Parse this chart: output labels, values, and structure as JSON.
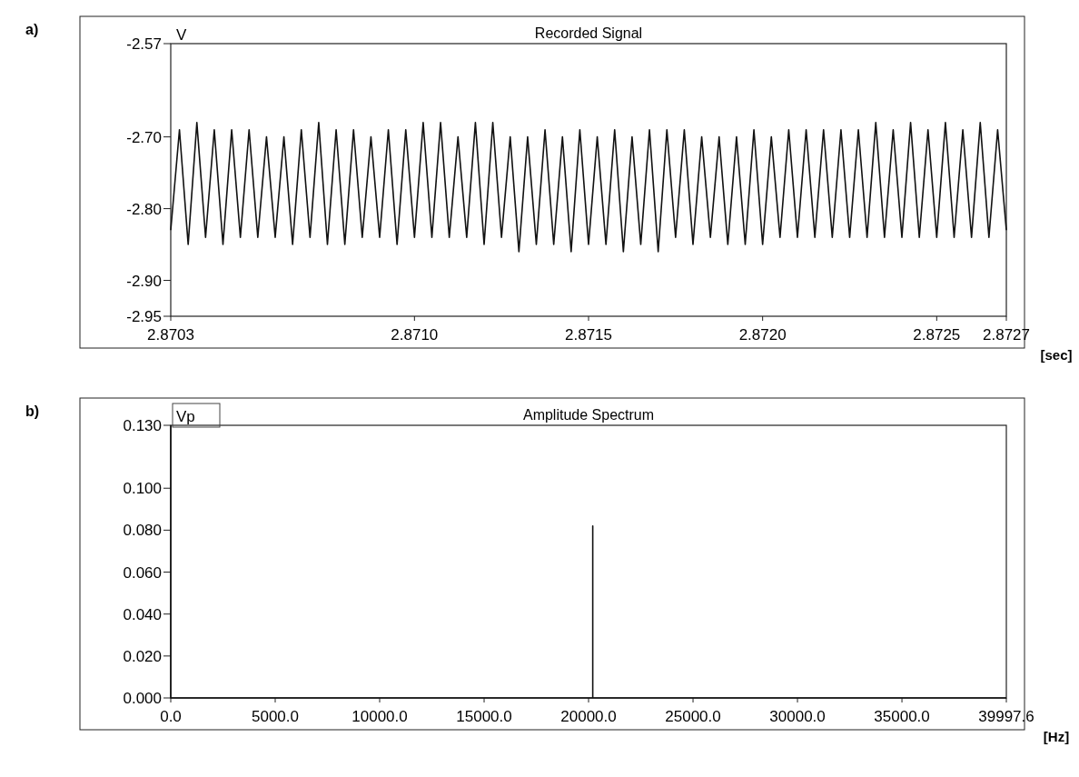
{
  "chart_data": [
    {
      "type": "line",
      "title": "Recorded Signal",
      "ylabel": "V",
      "xlabel": "[sec]",
      "annotations": [
        "a)"
      ],
      "xlim": [
        2.8703,
        2.8727
      ],
      "xticks": [
        {
          "value": 2.8703,
          "label": "2.8703"
        },
        {
          "value": 2.871,
          "label": "2.8710"
        },
        2.8715,
        {
          "value": 2.872,
          "label": "2.8720"
        },
        2.8725,
        2.8727
      ],
      "ylim": [
        -2.95,
        -2.57
      ],
      "yticks": [
        -2.57,
        {
          "value": -2.7,
          "label": "-2.70"
        },
        {
          "value": -2.8,
          "label": "-2.80"
        },
        {
          "value": -2.9,
          "label": "-2.90"
        },
        -2.95
      ],
      "grid": false,
      "marker": "none",
      "line_style": "solid",
      "series": [
        {
          "color": "#111111",
          "x": [
            2.8703,
            2.870325,
            2.87035,
            2.870375,
            2.8704,
            2.870425,
            2.87045,
            2.870475,
            2.8705,
            2.870525,
            2.87055,
            2.870575,
            2.8706,
            2.870625,
            2.87065,
            2.870675,
            2.8707,
            2.870725,
            2.87075,
            2.870775,
            2.8708,
            2.870825,
            2.87085,
            2.870875,
            2.8709,
            2.870925,
            2.87095,
            2.870975,
            2.871,
            2.871025,
            2.87105,
            2.871075,
            2.8711,
            2.871125,
            2.87115,
            2.871175,
            2.8712,
            2.871225,
            2.87125,
            2.871275,
            2.8713,
            2.871325,
            2.87135,
            2.871375,
            2.8714,
            2.871425,
            2.87145,
            2.871475,
            2.8715,
            2.871525,
            2.87155,
            2.871575,
            2.8716,
            2.871625,
            2.87165,
            2.871675,
            2.8717,
            2.871725,
            2.87175,
            2.871775,
            2.8718,
            2.871825,
            2.87185,
            2.871875,
            2.8719,
            2.871925,
            2.87195,
            2.871975,
            2.872,
            2.872025,
            2.87205,
            2.872075,
            2.8721,
            2.872125,
            2.87215,
            2.872175,
            2.8722,
            2.872225,
            2.87225,
            2.872275,
            2.8723,
            2.872325,
            2.87235,
            2.872375,
            2.8724,
            2.872425,
            2.87245,
            2.872475,
            2.8725,
            2.872525,
            2.87255,
            2.872575,
            2.8726,
            2.872625,
            2.87265,
            2.872675,
            2.8727
          ],
          "values": [
            -2.83,
            -2.69,
            -2.85,
            -2.68,
            -2.84,
            -2.69,
            -2.85,
            -2.69,
            -2.84,
            -2.69,
            -2.84,
            -2.7,
            -2.84,
            -2.7,
            -2.85,
            -2.69,
            -2.84,
            -2.68,
            -2.85,
            -2.69,
            -2.85,
            -2.69,
            -2.84,
            -2.7,
            -2.84,
            -2.69,
            -2.85,
            -2.69,
            -2.84,
            -2.68,
            -2.84,
            -2.68,
            -2.84,
            -2.7,
            -2.84,
            -2.68,
            -2.85,
            -2.68,
            -2.84,
            -2.7,
            -2.86,
            -2.7,
            -2.85,
            -2.69,
            -2.85,
            -2.7,
            -2.86,
            -2.69,
            -2.85,
            -2.7,
            -2.85,
            -2.69,
            -2.86,
            -2.7,
            -2.85,
            -2.69,
            -2.86,
            -2.69,
            -2.84,
            -2.69,
            -2.85,
            -2.7,
            -2.84,
            -2.7,
            -2.85,
            -2.7,
            -2.85,
            -2.69,
            -2.85,
            -2.7,
            -2.84,
            -2.69,
            -2.84,
            -2.69,
            -2.84,
            -2.69,
            -2.84,
            -2.69,
            -2.84,
            -2.69,
            -2.84,
            -2.68,
            -2.84,
            -2.69,
            -2.84,
            -2.68,
            -2.84,
            -2.69,
            -2.84,
            -2.68,
            -2.84,
            -2.69,
            -2.84,
            -2.68,
            -2.84,
            -2.69,
            -2.83
          ]
        }
      ]
    },
    {
      "type": "line",
      "title": "Amplitude Spectrum",
      "ylabel": "Vp",
      "xlabel": "[Hz]",
      "annotations": [
        "b)"
      ],
      "xlim": [
        0,
        39997.6
      ],
      "xticks": [
        {
          "value": 0,
          "label": "0.0"
        },
        {
          "value": 5000,
          "label": "5000.0"
        },
        {
          "value": 10000,
          "label": "10000.0"
        },
        {
          "value": 15000,
          "label": "15000.0"
        },
        {
          "value": 20000,
          "label": "20000.0"
        },
        {
          "value": 25000,
          "label": "25000.0"
        },
        {
          "value": 30000,
          "label": "30000.0"
        },
        {
          "value": 35000,
          "label": "35000.0"
        },
        39997.6
      ],
      "ylim": [
        0,
        0.13
      ],
      "yticks": [
        {
          "value": 0,
          "label": "0.000"
        },
        {
          "value": 0.02,
          "label": "0.020"
        },
        {
          "value": 0.04,
          "label": "0.040"
        },
        {
          "value": 0.06,
          "label": "0.060"
        },
        {
          "value": 0.08,
          "label": "0.080"
        },
        {
          "value": 0.1,
          "label": "0.100"
        },
        {
          "value": 0.13,
          "label": "0.130"
        }
      ],
      "grid": false,
      "marker": "none",
      "line_style": "solid",
      "series": [
        {
          "color": "#111111",
          "x": [
            0,
            0,
            20200,
            20200,
            20200,
            39997.6
          ],
          "values": [
            0.13,
            0,
            0,
            0.082,
            0,
            0
          ]
        }
      ]
    }
  ]
}
